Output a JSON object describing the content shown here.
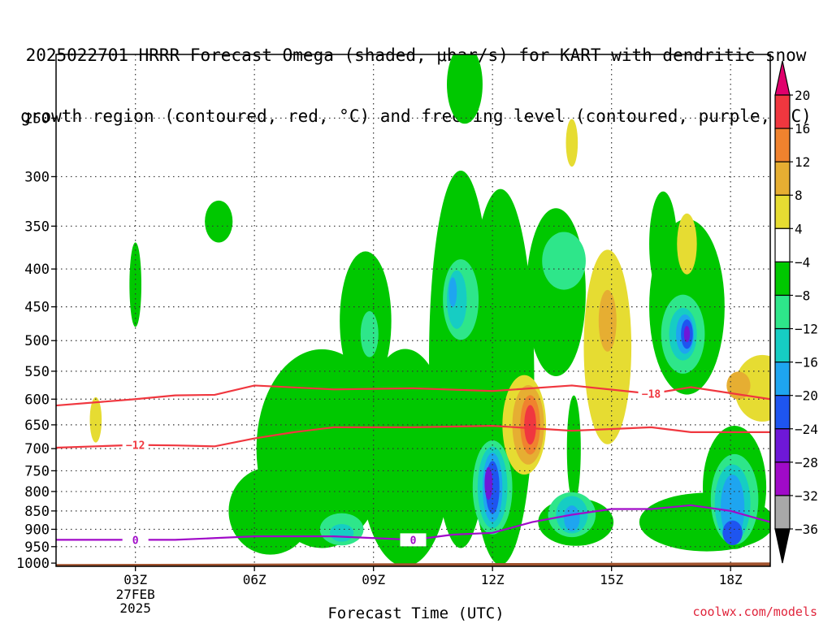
{
  "title": {
    "line1": "2025022701 HRRR Forecast Omega (shaded, μbar/s) for KART with dendritic snow",
    "line2": "growth region (contoured, red, °C) and freezing level (contoured, purple, °C)"
  },
  "credit": "coolwx.com/models",
  "chart_data": {
    "type": "heatmap",
    "xlabel": "Forecast Time (UTC)",
    "x_ticks": [
      {
        "hour": 3,
        "label": "03Z",
        "date_lines": [
          "27FEB",
          "2025"
        ]
      },
      {
        "hour": 6,
        "label": "06Z"
      },
      {
        "hour": 9,
        "label": "09Z"
      },
      {
        "hour": 12,
        "label": "12Z"
      },
      {
        "hour": 15,
        "label": "15Z"
      },
      {
        "hour": 18,
        "label": "18Z"
      }
    ],
    "xlim_hours": [
      1,
      19
    ],
    "y_axis": "pressure (hPa), inverted log scale",
    "ylim": [
      1010,
      205
    ],
    "y_ticks": [
      250,
      300,
      350,
      400,
      450,
      500,
      550,
      600,
      650,
      700,
      750,
      800,
      850,
      900,
      950,
      1000
    ],
    "grid": true,
    "colorbar": {
      "labels": [
        "20",
        "16",
        "12",
        "8",
        "4",
        "−4",
        "−8",
        "−12",
        "−16",
        "−20",
        "−24",
        "−28",
        "−32",
        "−36"
      ],
      "colors": {
        "gt20": "#e0006c",
        "16_20": "#f0373f",
        "12_16": "#f0822e",
        "8_12": "#e6ae32",
        "4_8": "#e6dc32",
        "m4_4": "#ffffff",
        "m8_m4": "#00c800",
        "m12_m8": "#2ee68a",
        "m16_m12": "#16cdc3",
        "m20_m16": "#1ea5f0",
        "m24_m20": "#1e55f0",
        "m28_m24": "#6e18d8",
        "m32_m28": "#a00ac8",
        "m36_m32": "#a8a8a8",
        "lt_m36": "#000000"
      }
    },
    "omega_features": [
      {
        "level": "m8_m4",
        "t": 7.7,
        "p": 700,
        "dt": 3.3,
        "dp": 420
      },
      {
        "level": "m8_m4",
        "t": 9.8,
        "p": 720,
        "dt": 2.3,
        "dp": 470
      },
      {
        "level": "m8_m4",
        "t": 6.4,
        "p": 850,
        "dt": 2.1,
        "dp": 230
      },
      {
        "level": "m8_m4",
        "t": 8.8,
        "p": 470,
        "dt": 1.3,
        "dp": 200
      },
      {
        "level": "m8_m4",
        "t": 11.2,
        "p": 530,
        "dt": 1.6,
        "dp": 560
      },
      {
        "level": "m8_m4",
        "t": 12.2,
        "p": 560,
        "dt": 1.7,
        "dp": 590
      },
      {
        "level": "m8_m4",
        "t": 13.6,
        "p": 430,
        "dt": 1.5,
        "dp": 220
      },
      {
        "level": "m8_m4",
        "t": 14.1,
        "p": 880,
        "dt": 1.9,
        "dp": 130
      },
      {
        "level": "m8_m4",
        "t": 14.05,
        "p": 700,
        "dt": 0.35,
        "dp": 230
      },
      {
        "level": "m8_m4",
        "t": 16.9,
        "p": 450,
        "dt": 1.9,
        "dp": 240
      },
      {
        "level": "m8_m4",
        "t": 16.3,
        "p": 370,
        "dt": 0.7,
        "dp": 120
      },
      {
        "level": "m8_m4",
        "t": 17.4,
        "p": 880,
        "dt": 3.4,
        "dp": 160
      },
      {
        "level": "m8_m4",
        "t": 18.1,
        "p": 790,
        "dt": 1.6,
        "dp": 300
      },
      {
        "level": "m8_m4",
        "t": 11.3,
        "p": 225,
        "dt": 0.9,
        "dp": 55
      },
      {
        "level": "m8_m4",
        "t": 5.1,
        "p": 345,
        "dt": 0.7,
        "dp": 45
      },
      {
        "level": "m8_m4",
        "t": 3.0,
        "p": 420,
        "dt": 0.3,
        "dp": 110
      },
      {
        "level": "m12_m8",
        "t": 8.9,
        "p": 490,
        "dt": 0.45,
        "dp": 70
      },
      {
        "level": "m12_m8",
        "t": 8.2,
        "p": 900,
        "dt": 1.1,
        "dp": 90
      },
      {
        "level": "m12_m8",
        "t": 11.2,
        "p": 440,
        "dt": 0.9,
        "dp": 110
      },
      {
        "level": "m12_m8",
        "t": 13.8,
        "p": 390,
        "dt": 1.1,
        "dp": 70
      },
      {
        "level": "m12_m8",
        "t": 12.0,
        "p": 790,
        "dt": 1.0,
        "dp": 230
      },
      {
        "level": "m12_m8",
        "t": 16.8,
        "p": 490,
        "dt": 1.1,
        "dp": 120
      },
      {
        "level": "m12_m8",
        "t": 18.1,
        "p": 820,
        "dt": 1.2,
        "dp": 230
      },
      {
        "level": "m12_m8",
        "t": 14.0,
        "p": 860,
        "dt": 1.2,
        "dp": 120
      },
      {
        "level": "m16_m12",
        "t": 11.1,
        "p": 440,
        "dt": 0.5,
        "dp": 80
      },
      {
        "level": "m16_m12",
        "t": 8.2,
        "p": 910,
        "dt": 0.6,
        "dp": 50
      },
      {
        "level": "m16_m12",
        "t": 12.0,
        "p": 790,
        "dt": 0.75,
        "dp": 200
      },
      {
        "level": "m16_m12",
        "t": 16.8,
        "p": 490,
        "dt": 0.7,
        "dp": 80
      },
      {
        "level": "m16_m12",
        "t": 18.05,
        "p": 830,
        "dt": 0.9,
        "dp": 200
      },
      {
        "level": "m16_m12",
        "t": 14.0,
        "p": 860,
        "dt": 0.8,
        "dp": 100
      },
      {
        "level": "m20_m16",
        "t": 11.0,
        "p": 430,
        "dt": 0.2,
        "dp": 40
      },
      {
        "level": "m20_m16",
        "t": 12.0,
        "p": 790,
        "dt": 0.5,
        "dp": 170
      },
      {
        "level": "m20_m16",
        "t": 16.85,
        "p": 490,
        "dt": 0.45,
        "dp": 60
      },
      {
        "level": "m20_m16",
        "t": 18.05,
        "p": 840,
        "dt": 0.6,
        "dp": 170
      },
      {
        "level": "m20_m16",
        "t": 14.0,
        "p": 870,
        "dt": 0.4,
        "dp": 70
      },
      {
        "level": "m24_m20",
        "t": 12.0,
        "p": 790,
        "dt": 0.35,
        "dp": 130
      },
      {
        "level": "m24_m20",
        "t": 16.9,
        "p": 490,
        "dt": 0.3,
        "dp": 45
      },
      {
        "level": "m24_m20",
        "t": 18.05,
        "p": 910,
        "dt": 0.5,
        "dp": 70
      },
      {
        "level": "m28_m24",
        "t": 11.9,
        "p": 780,
        "dt": 0.2,
        "dp": 80
      },
      {
        "level": "m28_m24",
        "t": 16.9,
        "p": 490,
        "dt": 0.15,
        "dp": 25
      },
      {
        "level": "4_8",
        "t": 2.0,
        "p": 640,
        "dt": 0.3,
        "dp": 90
      },
      {
        "level": "4_8",
        "t": 12.8,
        "p": 650,
        "dt": 1.1,
        "dp": 200
      },
      {
        "level": "4_8",
        "t": 14.9,
        "p": 510,
        "dt": 1.2,
        "dp": 300
      },
      {
        "level": "4_8",
        "t": 18.8,
        "p": 580,
        "dt": 1.4,
        "dp": 120
      },
      {
        "level": "4_8",
        "t": 16.9,
        "p": 370,
        "dt": 0.5,
        "dp": 70
      },
      {
        "level": "4_8",
        "t": 14.0,
        "p": 270,
        "dt": 0.3,
        "dp": 40
      },
      {
        "level": "8_12",
        "t": 12.9,
        "p": 650,
        "dt": 0.8,
        "dp": 160
      },
      {
        "level": "8_12",
        "t": 14.9,
        "p": 470,
        "dt": 0.45,
        "dp": 90
      },
      {
        "level": "8_12",
        "t": 18.2,
        "p": 575,
        "dt": 0.6,
        "dp": 50
      },
      {
        "level": "12_16",
        "t": 12.95,
        "p": 650,
        "dt": 0.5,
        "dp": 120
      },
      {
        "level": "16_20",
        "t": 12.95,
        "p": 650,
        "dt": 0.3,
        "dp": 80
      }
    ],
    "contours": [
      {
        "name": "-18",
        "color": "#f0373f",
        "label": "−18",
        "label_hour": 16.0,
        "x": [
          1,
          3,
          4,
          5,
          6,
          8,
          10,
          12,
          14,
          16,
          17,
          19
        ],
        "y": [
          612,
          600,
          593,
          592,
          575,
          582,
          580,
          585,
          575,
          590,
          578,
          600
        ]
      },
      {
        "name": "-12",
        "color": "#f0373f",
        "label": "−12",
        "label_hour": 3.0,
        "x": [
          1,
          2,
          3,
          4,
          5,
          6,
          7,
          8,
          10,
          12,
          14,
          16,
          17,
          19
        ],
        "y": [
          698,
          695,
          692,
          693,
          695,
          678,
          665,
          655,
          655,
          652,
          662,
          655,
          665,
          665
        ]
      },
      {
        "name": "0",
        "color": "#a00ac8",
        "label": "0",
        "label_hour": 3.0,
        "x": [
          1,
          2,
          3,
          4,
          5,
          6,
          8,
          9,
          10,
          11,
          12,
          13,
          14,
          15,
          16,
          17,
          18,
          19
        ],
        "y": [
          930,
          930,
          930,
          930,
          925,
          920,
          920,
          925,
          930,
          915,
          910,
          880,
          860,
          845,
          845,
          835,
          850,
          880
        ]
      },
      {
        "name": "0b",
        "color": "#a00ac8",
        "label": "0",
        "label_hour": 10.0,
        "x": [],
        "y": []
      }
    ],
    "ground": {
      "color": "#a0522d",
      "top_hpa": [
        1003,
        998
      ]
    }
  }
}
